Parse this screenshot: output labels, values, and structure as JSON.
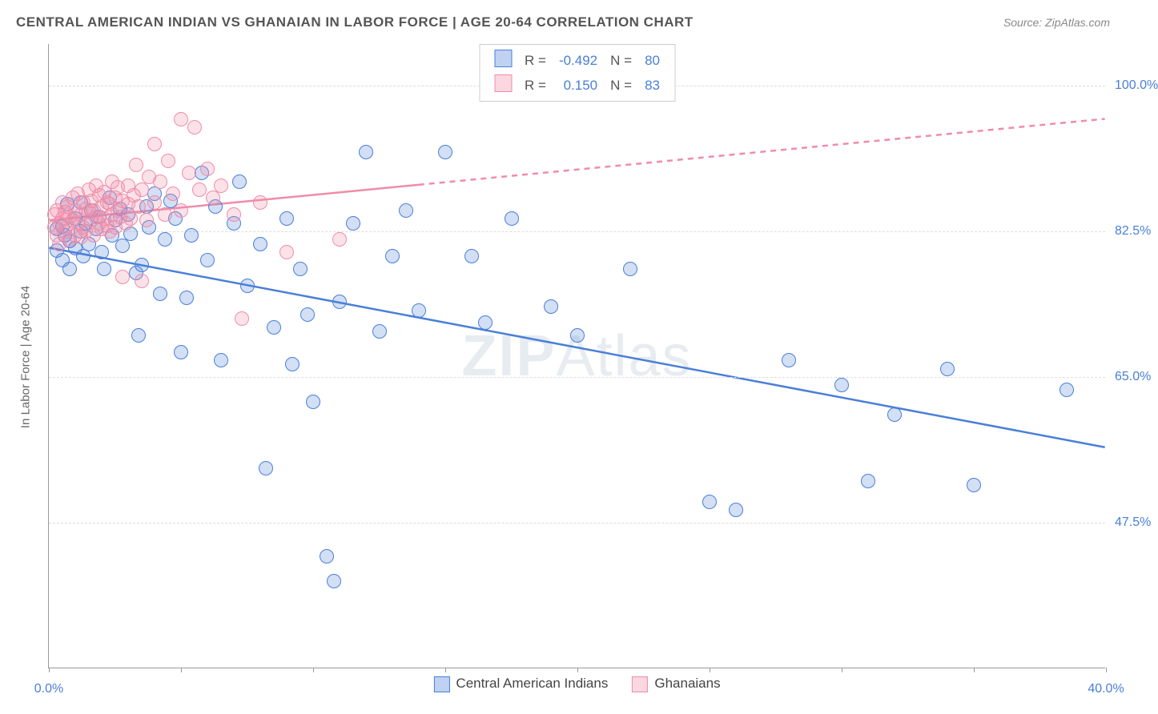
{
  "title": "CENTRAL AMERICAN INDIAN VS GHANAIAN IN LABOR FORCE | AGE 20-64 CORRELATION CHART",
  "source_prefix": "Source: ",
  "source_name": "ZipAtlas.com",
  "ylabel": "In Labor Force | Age 20-64",
  "watermark_left": "ZIP",
  "watermark_right": "Atlas",
  "chart": {
    "type": "scatter",
    "xlim": [
      0,
      40
    ],
    "ylim": [
      30,
      105
    ],
    "xticks": [
      0,
      5,
      10,
      15,
      20,
      25,
      30,
      35,
      40
    ],
    "xtick_labels_shown": {
      "0": "0.0%",
      "40": "40.0%"
    },
    "yticks": [
      47.5,
      65.0,
      82.5,
      100.0
    ],
    "ytick_labels": [
      "47.5%",
      "65.0%",
      "82.5%",
      "100.0%"
    ],
    "grid_dash": true,
    "grid_color": "#dddddd",
    "axis_color": "#999999",
    "background_color": "#ffffff",
    "tick_label_color": "#4a7fd8",
    "axis_label_color": "#666666",
    "marker_radius": 9,
    "marker_stroke_width": 1.5,
    "marker_fill_opacity": 0.25,
    "regression_line_width": 2.5
  },
  "series": [
    {
      "name": "Central American Indians",
      "color": "#4a7fd8",
      "fill": "rgba(74,127,216,0.25)",
      "R": "-0.492",
      "N": "80",
      "reg": {
        "x0": 0,
        "y0": 80.5,
        "x1": 40,
        "y1": 56.5,
        "extrapolate_from_x": null
      },
      "points": [
        [
          0.3,
          82.8
        ],
        [
          0.3,
          80.2
        ],
        [
          0.5,
          83.1
        ],
        [
          0.5,
          79.0
        ],
        [
          0.6,
          82.0
        ],
        [
          0.7,
          85.8
        ],
        [
          0.8,
          81.3
        ],
        [
          0.8,
          78.0
        ],
        [
          1.0,
          84.0
        ],
        [
          1.0,
          80.5
        ],
        [
          1.2,
          82.5
        ],
        [
          1.2,
          86.0
        ],
        [
          1.3,
          79.5
        ],
        [
          1.4,
          83.5
        ],
        [
          1.5,
          81.0
        ],
        [
          1.6,
          85.0
        ],
        [
          1.8,
          82.8
        ],
        [
          1.9,
          84.2
        ],
        [
          2.0,
          80.0
        ],
        [
          2.1,
          78.0
        ],
        [
          2.3,
          86.5
        ],
        [
          2.4,
          82.0
        ],
        [
          2.5,
          83.8
        ],
        [
          2.7,
          85.2
        ],
        [
          2.8,
          80.8
        ],
        [
          3.0,
          84.5
        ],
        [
          3.1,
          82.2
        ],
        [
          3.3,
          77.5
        ],
        [
          3.4,
          70.0
        ],
        [
          3.5,
          78.5
        ],
        [
          3.7,
          85.5
        ],
        [
          3.8,
          83.0
        ],
        [
          4.0,
          87.0
        ],
        [
          4.2,
          75.0
        ],
        [
          4.4,
          81.5
        ],
        [
          4.6,
          86.2
        ],
        [
          4.8,
          84.0
        ],
        [
          5.0,
          68.0
        ],
        [
          5.2,
          74.5
        ],
        [
          5.4,
          82.0
        ],
        [
          5.8,
          89.5
        ],
        [
          6.0,
          79.0
        ],
        [
          6.3,
          85.5
        ],
        [
          6.5,
          67.0
        ],
        [
          7.0,
          83.5
        ],
        [
          7.2,
          88.5
        ],
        [
          7.5,
          76.0
        ],
        [
          8.0,
          81.0
        ],
        [
          8.2,
          54.0
        ],
        [
          8.5,
          71.0
        ],
        [
          9.0,
          84.0
        ],
        [
          9.2,
          66.5
        ],
        [
          9.5,
          78.0
        ],
        [
          9.8,
          72.5
        ],
        [
          10.0,
          62.0
        ],
        [
          10.5,
          43.5
        ],
        [
          10.8,
          40.5
        ],
        [
          11.0,
          74.0
        ],
        [
          11.5,
          83.5
        ],
        [
          12.0,
          92.0
        ],
        [
          12.5,
          70.5
        ],
        [
          13.0,
          79.5
        ],
        [
          13.5,
          85.0
        ],
        [
          14.0,
          73.0
        ],
        [
          15.0,
          92.0
        ],
        [
          16.0,
          79.5
        ],
        [
          16.5,
          71.5
        ],
        [
          17.5,
          84.0
        ],
        [
          19.0,
          73.5
        ],
        [
          20.0,
          70.0
        ],
        [
          22.0,
          78.0
        ],
        [
          25.0,
          50.0
        ],
        [
          26.0,
          49.0
        ],
        [
          28.0,
          67.0
        ],
        [
          30.0,
          64.0
        ],
        [
          31.0,
          52.5
        ],
        [
          32.0,
          60.5
        ],
        [
          34.0,
          66.0
        ],
        [
          35.0,
          52.0
        ],
        [
          38.5,
          63.5
        ]
      ]
    },
    {
      "name": "Ghanaians",
      "color": "#f08ca8",
      "fill": "rgba(240,140,168,0.25)",
      "R": "0.150",
      "N": "83",
      "reg": {
        "x0": 0,
        "y0": 83.8,
        "x1": 40,
        "y1": 96.0,
        "extrapolate_from_x": 14
      },
      "points": [
        [
          0.2,
          83.0
        ],
        [
          0.2,
          84.5
        ],
        [
          0.3,
          82.0
        ],
        [
          0.3,
          85.0
        ],
        [
          0.4,
          83.5
        ],
        [
          0.4,
          81.0
        ],
        [
          0.5,
          84.0
        ],
        [
          0.5,
          86.0
        ],
        [
          0.6,
          82.5
        ],
        [
          0.6,
          84.8
        ],
        [
          0.7,
          83.2
        ],
        [
          0.7,
          85.5
        ],
        [
          0.8,
          81.5
        ],
        [
          0.8,
          84.2
        ],
        [
          0.9,
          83.8
        ],
        [
          0.9,
          86.5
        ],
        [
          1.0,
          82.0
        ],
        [
          1.0,
          85.0
        ],
        [
          1.1,
          83.5
        ],
        [
          1.1,
          87.0
        ],
        [
          1.2,
          84.5
        ],
        [
          1.2,
          81.8
        ],
        [
          1.3,
          86.0
        ],
        [
          1.3,
          83.0
        ],
        [
          1.4,
          85.2
        ],
        [
          1.4,
          82.5
        ],
        [
          1.5,
          84.8
        ],
        [
          1.5,
          87.5
        ],
        [
          1.6,
          83.8
        ],
        [
          1.6,
          86.2
        ],
        [
          1.7,
          85.0
        ],
        [
          1.7,
          82.0
        ],
        [
          1.8,
          84.2
        ],
        [
          1.8,
          88.0
        ],
        [
          1.9,
          83.5
        ],
        [
          1.9,
          86.8
        ],
        [
          2.0,
          85.5
        ],
        [
          2.0,
          82.8
        ],
        [
          2.1,
          84.0
        ],
        [
          2.1,
          87.2
        ],
        [
          2.2,
          83.2
        ],
        [
          2.2,
          86.0
        ],
        [
          2.3,
          85.8
        ],
        [
          2.3,
          82.5
        ],
        [
          2.4,
          84.5
        ],
        [
          2.4,
          88.5
        ],
        [
          2.5,
          83.0
        ],
        [
          2.5,
          86.5
        ],
        [
          2.6,
          85.0
        ],
        [
          2.6,
          87.8
        ],
        [
          2.7,
          84.2
        ],
        [
          2.8,
          77.0
        ],
        [
          2.8,
          86.2
        ],
        [
          2.9,
          83.5
        ],
        [
          3.0,
          85.8
        ],
        [
          3.0,
          88.0
        ],
        [
          3.1,
          84.0
        ],
        [
          3.2,
          86.8
        ],
        [
          3.3,
          90.5
        ],
        [
          3.4,
          85.5
        ],
        [
          3.5,
          76.5
        ],
        [
          3.5,
          87.5
        ],
        [
          3.7,
          83.8
        ],
        [
          3.8,
          89.0
        ],
        [
          4.0,
          93.0
        ],
        [
          4.0,
          86.0
        ],
        [
          4.2,
          88.5
        ],
        [
          4.4,
          84.5
        ],
        [
          4.5,
          91.0
        ],
        [
          4.7,
          87.0
        ],
        [
          5.0,
          96.0
        ],
        [
          5.0,
          85.0
        ],
        [
          5.3,
          89.5
        ],
        [
          5.5,
          95.0
        ],
        [
          5.7,
          87.5
        ],
        [
          6.0,
          90.0
        ],
        [
          6.2,
          86.5
        ],
        [
          6.5,
          88.0
        ],
        [
          7.0,
          84.5
        ],
        [
          7.3,
          72.0
        ],
        [
          8.0,
          86.0
        ],
        [
          9.0,
          80.0
        ],
        [
          11.0,
          81.5
        ]
      ]
    }
  ],
  "legend_top": {
    "rows": [
      {
        "swatch_fill": "rgba(74,127,216,0.35)",
        "swatch_border": "#4a7fd8",
        "R_label": "R =",
        "R": "-0.492",
        "N_label": "N =",
        "N": "80"
      },
      {
        "swatch_fill": "rgba(240,140,168,0.35)",
        "swatch_border": "#f08ca8",
        "R_label": "R =",
        "R": "0.150",
        "N_label": "N =",
        "N": "83"
      }
    ]
  },
  "legend_bottom": [
    {
      "swatch_fill": "rgba(74,127,216,0.35)",
      "swatch_border": "#4a7fd8",
      "label": "Central American Indians"
    },
    {
      "swatch_fill": "rgba(240,140,168,0.35)",
      "swatch_border": "#f08ca8",
      "label": "Ghanaians"
    }
  ]
}
